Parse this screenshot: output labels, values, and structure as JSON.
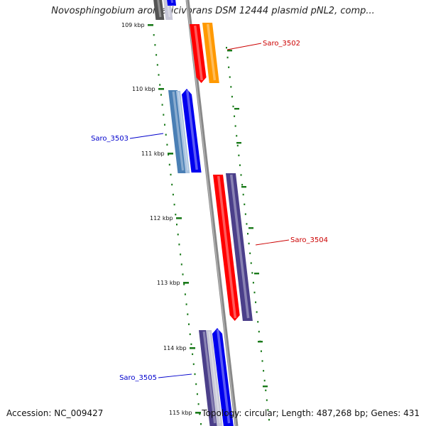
{
  "title": "Novosphingobium aromaticivorans DSM 12444 plasmid pNL2, comp...",
  "footer": {
    "accession": "Accession: NC_009427",
    "summary": "Topology: circular; Length: 487,268 bp; Genes: 431"
  },
  "ruler": [
    "109 kbp",
    "110 kbp",
    "111 kbp",
    "112 kbp",
    "113 kbp",
    "114 kbp",
    "115 kbp"
  ],
  "genes": [
    {
      "name": "Saro_3502",
      "color": "#cc0000"
    },
    {
      "name": "Saro_3503",
      "color": "#0000cc"
    },
    {
      "name": "Saro_3504",
      "color": "#cc0000"
    },
    {
      "name": "Saro_3505",
      "color": "#0000cc"
    }
  ],
  "colors": {
    "backbone": "#888888",
    "tick": "#1a7a1a",
    "red": "#ff0000",
    "orange": "#ff9900",
    "blue": "#0000ee",
    "steelblue": "#4a7fb5",
    "purple": "#4b3f8a",
    "gray": "#555555",
    "lightgray": "#c8c8d8"
  }
}
